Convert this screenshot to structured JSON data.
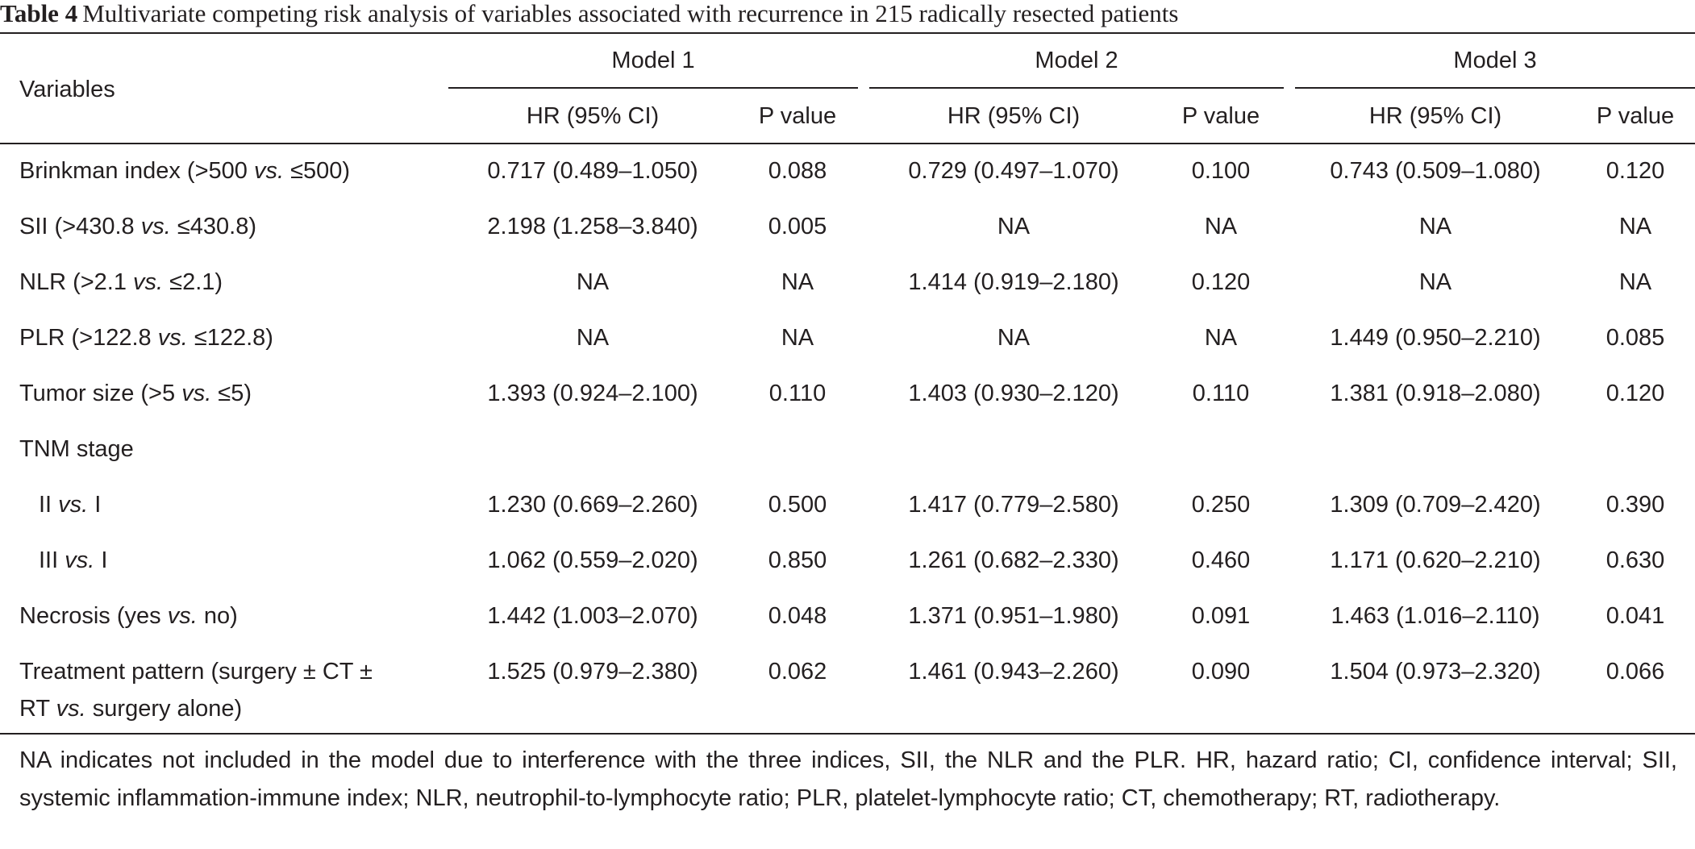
{
  "caption": {
    "label": "Table 4",
    "text": "Multivariate competing risk analysis of variables associated with recurrence in 215 radically resected patients"
  },
  "header": {
    "variables": "Variables",
    "models": [
      "Model 1",
      "Model 2",
      "Model 3"
    ],
    "hr_label": "HR (95% CI)",
    "p_label": "P value"
  },
  "rows": [
    {
      "pre": "Brinkman index (>500 ",
      "vs": "vs.",
      "post": " ≤500)",
      "cont": "",
      "values": [
        "0.717 (0.489–1.050)",
        "0.088",
        "0.729 (0.497–1.070)",
        "0.100",
        "0.743 (0.509–1.080)",
        "0.120"
      ]
    },
    {
      "pre": "SII (>430.8 ",
      "vs": "vs.",
      "post": " ≤430.8)",
      "cont": "",
      "values": [
        "2.198 (1.258–3.840)",
        "0.005",
        "NA",
        "NA",
        "NA",
        "NA"
      ]
    },
    {
      "pre": "NLR (>2.1 ",
      "vs": "vs.",
      "post": " ≤2.1)",
      "cont": "",
      "values": [
        "NA",
        "NA",
        "1.414 (0.919–2.180)",
        "0.120",
        "NA",
        "NA"
      ]
    },
    {
      "pre": "PLR (>122.8 ",
      "vs": "vs.",
      "post": " ≤122.8)",
      "cont": "",
      "values": [
        "NA",
        "NA",
        "NA",
        "NA",
        "1.449 (0.950–2.210)",
        "0.085"
      ]
    },
    {
      "pre": "Tumor size (>5 ",
      "vs": "vs.",
      "post": " ≤5)",
      "cont": "",
      "values": [
        "1.393 (0.924–2.100)",
        "0.110",
        "1.403 (0.930–2.120)",
        "0.110",
        "1.381 (0.918–2.080)",
        "0.120"
      ]
    },
    {
      "pre": "TNM stage",
      "vs": "",
      "post": "",
      "cont": "",
      "values": [
        "",
        "",
        "",
        "",
        "",
        ""
      ]
    },
    {
      "pre": "II ",
      "vs": "vs.",
      "post": " I",
      "cont": "",
      "values": [
        "1.230 (0.669–2.260)",
        "0.500",
        "1.417 (0.779–2.580)",
        "0.250",
        "1.309 (0.709–2.420)",
        "0.390"
      ]
    },
    {
      "pre": "III ",
      "vs": "vs.",
      "post": " I",
      "cont": "",
      "values": [
        "1.062 (0.559–2.020)",
        "0.850",
        "1.261 (0.682–2.330)",
        "0.460",
        "1.171 (0.620–2.210)",
        "0.630"
      ]
    },
    {
      "pre": "Necrosis (yes ",
      "vs": "vs.",
      "post": " no)",
      "cont": "",
      "values": [
        "1.442 (1.003–2.070)",
        "0.048",
        "1.371 (0.951–1.980)",
        "0.091",
        "1.463 (1.016–2.110)",
        "0.041"
      ]
    },
    {
      "pre": "Treatment pattern (surgery ± CT ±",
      "vs": "",
      "post": "",
      "cont": "surgery alone)",
      "values": [
        "1.525 (0.979–2.380)",
        "0.062",
        "1.461 (0.943–2.260)",
        "0.090",
        "1.504 (0.973–2.320)",
        "0.066"
      ]
    }
  ],
  "row_extra": {
    "cont_pre": "RT ",
    "cont_vs": "vs."
  },
  "footnote": "NA indicates not included in the model due to interference with the three indices, SII, the NLR and the PLR. HR, hazard ratio; CI, confidence interval; SII, systemic inflammation-immune index; NLR, neutrophil-to-lymphocyte ratio; PLR, platelet-lymphocyte ratio; CT, chemotherapy; RT, radiotherapy."
}
